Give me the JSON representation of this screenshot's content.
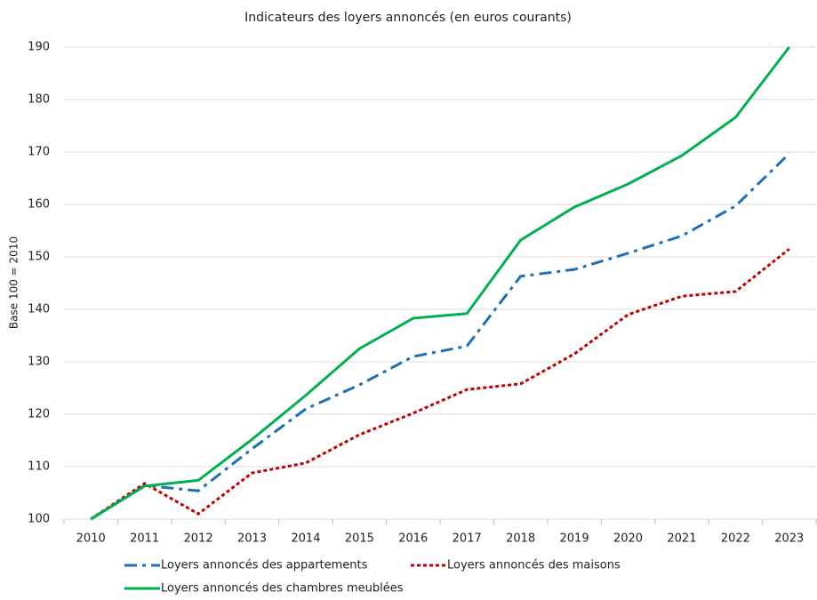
{
  "chart_data": {
    "type": "line",
    "title": "Indicateurs des loyers annoncés (en euros courants)",
    "y_label": "Base 100 = 2010",
    "categories": [
      "2010",
      "2011",
      "2012",
      "2013",
      "2014",
      "2015",
      "2016",
      "2017",
      "2018",
      "2019",
      "2020",
      "2021",
      "2022",
      "2023"
    ],
    "series": [
      {
        "name": "Loyers annoncés des appartements",
        "color": "#1f6fb5",
        "dash": "dashdot",
        "values": [
          100,
          106.4,
          105.4,
          113.4,
          121,
          125.6,
          131,
          133,
          146.3,
          147.6,
          150.7,
          154,
          159.7,
          169.7
        ]
      },
      {
        "name": "Loyers annoncés des maisons",
        "color": "#c00000",
        "dash": "dot",
        "values": [
          100,
          106.8,
          101,
          108.8,
          110.7,
          116.1,
          120.2,
          124.7,
          125.8,
          131.5,
          139,
          142.5,
          143.4,
          151.5
        ]
      },
      {
        "name": "Loyers annoncés des chambres meublées",
        "color": "#00b050",
        "dash": "solid",
        "values": [
          100,
          106.3,
          107.4,
          115.2,
          123.6,
          132.5,
          138.3,
          139.2,
          153.2,
          159.5,
          163.9,
          169.3,
          176.6,
          190
        ]
      }
    ],
    "ylim": [
      100,
      190
    ],
    "yticks": [
      100,
      110,
      120,
      130,
      140,
      150,
      160,
      170,
      180,
      190
    ],
    "grid": true,
    "legend": "bottom"
  }
}
